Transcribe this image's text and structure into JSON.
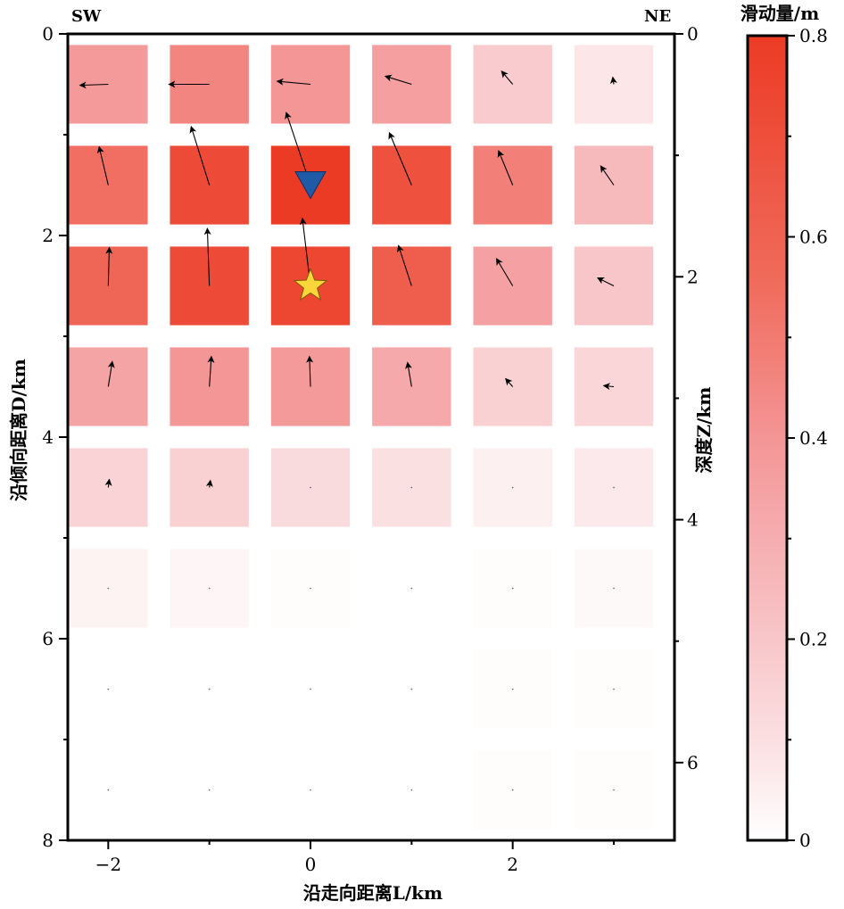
{
  "chart_data": {
    "type": "heatmap",
    "direction_labels": {
      "left": "SW",
      "right": "NE"
    },
    "xlabel": "沿走向距离L/km",
    "ylabel": "沿倾向距离D/km",
    "y2label": "深度Z/km",
    "colorbar_label": "滑动量/m",
    "xlim": [
      -2.4,
      3.6
    ],
    "ylim": [
      0,
      8
    ],
    "z_depth_ticks": [
      0,
      2,
      4,
      6
    ],
    "depth_per_downdip": 0.83,
    "x_ticks": [
      -2,
      0,
      2
    ],
    "y_ticks": [
      0,
      2,
      4,
      6,
      8
    ],
    "colorbar_ticks": [
      0,
      0.2,
      0.4,
      0.6,
      0.8
    ],
    "colorbar_range": [
      0,
      0.8
    ],
    "colors": {
      "low": "#ffffff",
      "mid": "#f4a5a8",
      "high": "#ec3b25"
    },
    "grid": false,
    "legend": "none",
    "patch_x_centers": [
      -2,
      -1,
      0,
      1,
      2,
      3
    ],
    "patch_y_centers": [
      0.5,
      1.5,
      2.5,
      3.5,
      4.5,
      5.5,
      6.5,
      7.5
    ],
    "patch_size_km": 0.78,
    "slip": [
      [
        0.38,
        0.46,
        0.4,
        0.36,
        0.18,
        0.08
      ],
      [
        0.54,
        0.72,
        0.8,
        0.69,
        0.48,
        0.25
      ],
      [
        0.58,
        0.72,
        0.74,
        0.62,
        0.35,
        0.2
      ],
      [
        0.34,
        0.4,
        0.38,
        0.32,
        0.16,
        0.14
      ],
      [
        0.15,
        0.16,
        0.12,
        0.1,
        0.05,
        0.07
      ],
      [
        0.04,
        0.03,
        0.01,
        0.0,
        0.01,
        0.02
      ],
      [
        0.0,
        0.0,
        0.0,
        0.0,
        0.01,
        0.01
      ],
      [
        0.0,
        0.0,
        0.0,
        0.0,
        0.01,
        0.01
      ]
    ],
    "slip_vectors_km": [
      [
        [
          -0.28,
          0.01
        ],
        [
          -0.4,
          0.0
        ],
        [
          -0.33,
          -0.03
        ],
        [
          -0.26,
          -0.08
        ],
        [
          -0.11,
          -0.13
        ],
        [
          -0.01,
          -0.07
        ]
      ],
      [
        [
          -0.09,
          -0.38
        ],
        [
          -0.18,
          -0.58
        ],
        [
          -0.24,
          -0.72
        ],
        [
          -0.22,
          -0.52
        ],
        [
          -0.14,
          -0.34
        ],
        [
          -0.13,
          -0.19
        ]
      ],
      [
        [
          0.01,
          -0.38
        ],
        [
          -0.02,
          -0.57
        ],
        [
          -0.08,
          -0.67
        ],
        [
          -0.13,
          -0.4
        ],
        [
          -0.16,
          -0.27
        ],
        [
          -0.16,
          -0.08
        ]
      ],
      [
        [
          0.04,
          -0.25
        ],
        [
          0.02,
          -0.3
        ],
        [
          -0.01,
          -0.3
        ],
        [
          -0.04,
          -0.24
        ],
        [
          -0.07,
          -0.08
        ],
        [
          -0.1,
          -0.01
        ]
      ],
      [
        [
          0.01,
          -0.08
        ],
        [
          0.01,
          -0.07
        ],
        [
          0.0,
          -0.05
        ],
        [
          -0.01,
          -0.03
        ],
        [
          -0.02,
          0.0
        ],
        [
          -0.03,
          0.0
        ]
      ],
      [
        [
          0.0,
          -0.02
        ],
        [
          0.0,
          -0.01
        ],
        [
          0.0,
          0.0
        ],
        [
          0.0,
          0.0
        ],
        [
          0.0,
          0.0
        ],
        [
          -0.01,
          0.0
        ]
      ],
      [
        [
          0.0,
          0.0
        ],
        [
          0.0,
          0.0
        ],
        [
          0.0,
          0.0
        ],
        [
          0.0,
          0.0
        ],
        [
          0.0,
          0.0
        ],
        [
          0.0,
          0.0
        ]
      ],
      [
        [
          0.0,
          0.0
        ],
        [
          0.0,
          0.0
        ],
        [
          0.0,
          0.0
        ],
        [
          0.0,
          0.0
        ],
        [
          0.0,
          0.0
        ],
        [
          0.0,
          0.0
        ]
      ]
    ],
    "hypocenter": {
      "x": 0,
      "y": 2.5,
      "symbol": "star",
      "color": "#f9d53a"
    },
    "station_marker": {
      "x": 0,
      "y": 1.5,
      "symbol": "inverted-triangle",
      "color": "#1e5aa6"
    }
  }
}
